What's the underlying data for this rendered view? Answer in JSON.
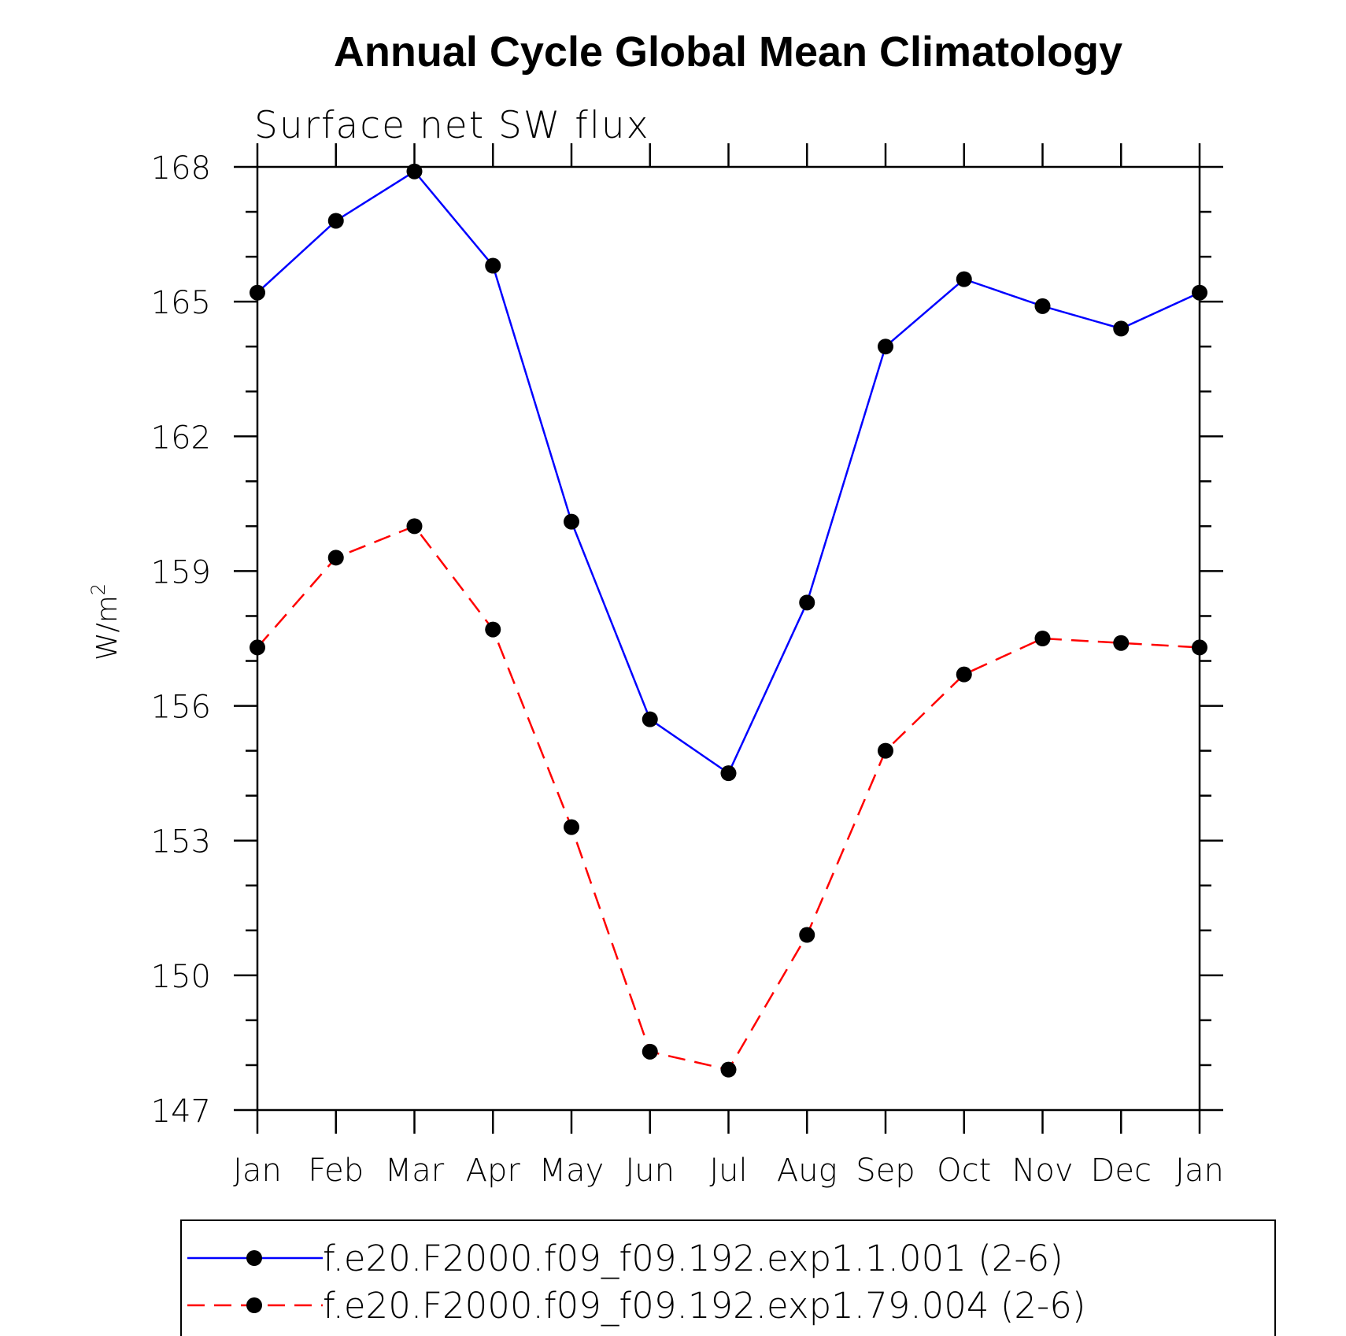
{
  "chart_data": {
    "type": "line",
    "title": "Annual Cycle Global Mean Climatology",
    "subtitle": "Surface net SW flux",
    "ylabel": "W/m",
    "ylabel_superscript": "2",
    "xlabel": "",
    "categories": [
      "Jan",
      "Feb",
      "Mar",
      "Apr",
      "May",
      "Jun",
      "Jul",
      "Aug",
      "Sep",
      "Oct",
      "Nov",
      "Dec",
      "Jan"
    ],
    "ylim": [
      147,
      168
    ],
    "yticks": [
      147,
      150,
      153,
      156,
      159,
      162,
      165,
      168
    ],
    "legend_position": "bottom",
    "series": [
      {
        "name": "f.e20.F2000.f09_f09.192.exp1.1.001 (2-6)",
        "color": "#0000ff",
        "dash": "solid",
        "marker_color": "#000000",
        "values": [
          165.2,
          166.8,
          167.9,
          165.8,
          160.1,
          155.7,
          154.5,
          158.3,
          164.0,
          165.5,
          164.9,
          164.4,
          165.2
        ]
      },
      {
        "name": "f.e20.F2000.f09_f09.192.exp1.79.004 (2-6)",
        "color": "#ff0000",
        "dash": "dashed",
        "marker_color": "#000000",
        "values": [
          157.3,
          159.3,
          160.0,
          157.7,
          153.3,
          148.3,
          147.9,
          150.9,
          155.0,
          156.7,
          157.5,
          157.4,
          157.3
        ]
      }
    ]
  }
}
